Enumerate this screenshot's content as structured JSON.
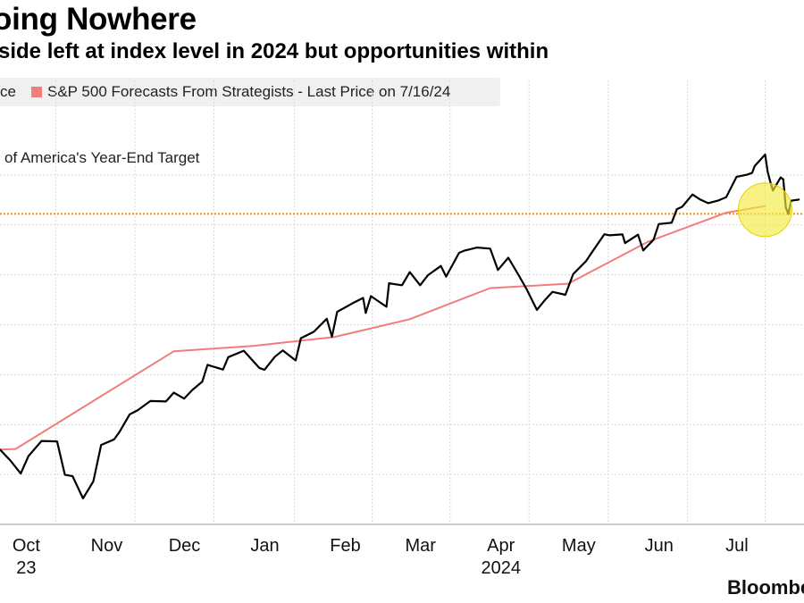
{
  "title": "oing Nowhere",
  "subtitle": "side left at index level in 2024 but opportunities within",
  "source": "Bloombe",
  "chart_data": {
    "type": "line",
    "title": "oing Nowhere",
    "subtitle": "side left at index level in 2024 but opportunities within",
    "legend": [
      {
        "label": "ce",
        "color": "#000000"
      },
      {
        "label": "S&P 500 Forecasts From Strategists - Last Price on 7/16/24",
        "color": "#f07d7b"
      }
    ],
    "legend_position": "top-left",
    "grid": true,
    "x_ticks": [
      {
        "label": "Oct",
        "date": "2023-10-01"
      },
      {
        "label": "Nov",
        "date": "2023-11-01"
      },
      {
        "label": "Dec",
        "date": "2023-12-01"
      },
      {
        "label": "Jan",
        "date": "2024-01-01"
      },
      {
        "label": "Feb",
        "date": "2024-02-01"
      },
      {
        "label": "Mar",
        "date": "2024-03-01"
      },
      {
        "label": "Apr",
        "date": "2024-04-01"
      },
      {
        "label": "May",
        "date": "2024-05-01"
      },
      {
        "label": "Jun",
        "date": "2024-06-01"
      },
      {
        "label": "Jul",
        "date": "2024-07-01"
      }
    ],
    "year_labels": [
      {
        "label": "23",
        "date": "2023-10-01"
      },
      {
        "label": "2024",
        "date": "2024-04-01"
      }
    ],
    "xlim": [
      "2023-09-25",
      "2024-07-31"
    ],
    "ylim": [
      4000,
      5800
    ],
    "reference_line": {
      "label": "of America's Year-End Target",
      "value": 5400,
      "color": "#ff8c00"
    },
    "highlight": {
      "date": "2024-07-16",
      "value": 5390,
      "color": "#f5ea40"
    },
    "series": [
      {
        "color": "#000000",
        "points": [
          [
            "2023-09-25",
            4337
          ],
          [
            "2023-09-29",
            4288
          ],
          [
            "2023-10-03",
            4229
          ],
          [
            "2023-10-06",
            4308
          ],
          [
            "2023-10-11",
            4376
          ],
          [
            "2023-10-17",
            4374
          ],
          [
            "2023-10-20",
            4224
          ],
          [
            "2023-10-23",
            4217
          ],
          [
            "2023-10-27",
            4117
          ],
          [
            "2023-10-31",
            4194
          ],
          [
            "2023-11-03",
            4358
          ],
          [
            "2023-11-08",
            4383
          ],
          [
            "2023-11-10",
            4415
          ],
          [
            "2023-11-14",
            4496
          ],
          [
            "2023-11-17",
            4514
          ],
          [
            "2023-11-22",
            4556
          ],
          [
            "2023-11-28",
            4554
          ],
          [
            "2023-12-01",
            4594
          ],
          [
            "2023-12-05",
            4567
          ],
          [
            "2023-12-08",
            4604
          ],
          [
            "2023-12-12",
            4644
          ],
          [
            "2023-12-14",
            4719
          ],
          [
            "2023-12-20",
            4698
          ],
          [
            "2023-12-22",
            4754
          ],
          [
            "2023-12-28",
            4783
          ],
          [
            "2024-01-03",
            4705
          ],
          [
            "2024-01-05",
            4697
          ],
          [
            "2024-01-09",
            4756
          ],
          [
            "2024-01-12",
            4784
          ],
          [
            "2024-01-17",
            4739
          ],
          [
            "2024-01-19",
            4839
          ],
          [
            "2024-01-24",
            4868
          ],
          [
            "2024-01-29",
            4927
          ],
          [
            "2024-01-31",
            4846
          ],
          [
            "2024-02-02",
            4958
          ],
          [
            "2024-02-08",
            4997
          ],
          [
            "2024-02-12",
            5021
          ],
          [
            "2024-02-13",
            4953
          ],
          [
            "2024-02-15",
            5029
          ],
          [
            "2024-02-21",
            4981
          ],
          [
            "2024-02-22",
            5087
          ],
          [
            "2024-02-27",
            5078
          ],
          [
            "2024-03-01",
            5137
          ],
          [
            "2024-03-05",
            5078
          ],
          [
            "2024-03-08",
            5123
          ],
          [
            "2024-03-13",
            5165
          ],
          [
            "2024-03-15",
            5117
          ],
          [
            "2024-03-20",
            5224
          ],
          [
            "2024-03-22",
            5234
          ],
          [
            "2024-03-27",
            5248
          ],
          [
            "2024-04-01",
            5243
          ],
          [
            "2024-04-04",
            5147
          ],
          [
            "2024-04-08",
            5202
          ],
          [
            "2024-04-12",
            5123
          ],
          [
            "2024-04-15",
            5061
          ],
          [
            "2024-04-19",
            4967
          ],
          [
            "2024-04-22",
            5010
          ],
          [
            "2024-04-25",
            5048
          ],
          [
            "2024-04-30",
            5035
          ],
          [
            "2024-05-03",
            5128
          ],
          [
            "2024-05-08",
            5187
          ],
          [
            "2024-05-10",
            5222
          ],
          [
            "2024-05-15",
            5308
          ],
          [
            "2024-05-17",
            5303
          ],
          [
            "2024-05-22",
            5307
          ],
          [
            "2024-05-23",
            5268
          ],
          [
            "2024-05-28",
            5306
          ],
          [
            "2024-05-30",
            5235
          ],
          [
            "2024-06-03",
            5283
          ],
          [
            "2024-06-05",
            5354
          ],
          [
            "2024-06-10",
            5360
          ],
          [
            "2024-06-12",
            5421
          ],
          [
            "2024-06-14",
            5431
          ],
          [
            "2024-06-18",
            5487
          ],
          [
            "2024-06-21",
            5464
          ],
          [
            "2024-06-24",
            5448
          ],
          [
            "2024-06-28",
            5460
          ],
          [
            "2024-07-01",
            5475
          ],
          [
            "2024-07-05",
            5567
          ],
          [
            "2024-07-09",
            5576
          ],
          [
            "2024-07-11",
            5584
          ],
          [
            "2024-07-12",
            5615
          ],
          [
            "2024-07-16",
            5667
          ],
          [
            "2024-07-17",
            5588
          ],
          [
            "2024-07-18",
            5544
          ],
          [
            "2024-07-19",
            5505
          ],
          [
            "2024-07-22",
            5564
          ],
          [
            "2024-07-23",
            5555
          ],
          [
            "2024-07-24",
            5427
          ],
          [
            "2024-07-25",
            5399
          ],
          [
            "2024-07-26",
            5459
          ],
          [
            "2024-07-29",
            5464
          ]
        ]
      },
      {
        "name": "S&P 500 Forecasts From Strategists - Last Price on 7/16/24",
        "color": "#f07d7b",
        "points": [
          [
            "2023-09-25",
            4337
          ],
          [
            "2023-10-01",
            4340
          ],
          [
            "2023-12-01",
            4780
          ],
          [
            "2024-01-01",
            4805
          ],
          [
            "2024-02-01",
            4845
          ],
          [
            "2024-03-01",
            4925
          ],
          [
            "2024-04-01",
            5065
          ],
          [
            "2024-05-01",
            5085
          ],
          [
            "2024-06-01",
            5275
          ],
          [
            "2024-07-01",
            5405
          ],
          [
            "2024-07-16",
            5435
          ]
        ]
      }
    ]
  }
}
